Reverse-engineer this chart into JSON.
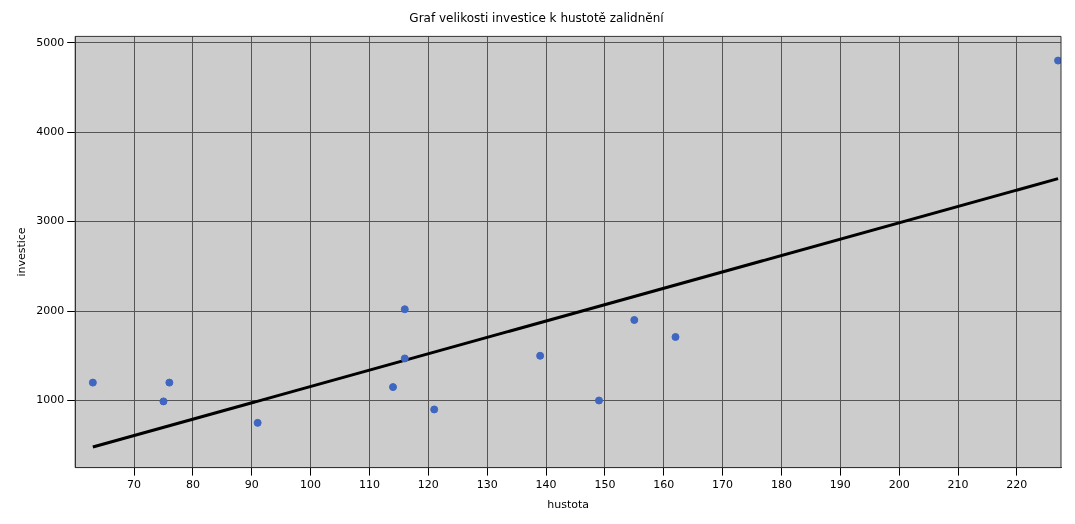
{
  "chart_data": {
    "type": "scatter",
    "title": "Graf velikosti investice k hustotě zalidnění",
    "xlabel": "hustota",
    "ylabel": "investice",
    "xlim": [
      60,
      227.5
    ],
    "ylim": [
      250,
      5070
    ],
    "xticks": [
      70,
      80,
      90,
      100,
      110,
      120,
      130,
      140,
      150,
      160,
      170,
      180,
      190,
      200,
      210,
      220
    ],
    "yticks": [
      1000,
      2000,
      3000,
      4000,
      5000
    ],
    "grid": true,
    "legend": false,
    "marker": "circle",
    "series": [
      {
        "color": "#3f66c0",
        "x": [
          63,
          75,
          76,
          91,
          114,
          116,
          116,
          121,
          139,
          149,
          155,
          162,
          227
        ],
        "values": [
          1200,
          990,
          1200,
          750,
          1150,
          2020,
          1470,
          900,
          1500,
          1000,
          1900,
          1710,
          4800
        ]
      },
      {
        "type": "line",
        "color": "#000000",
        "x": [
          63,
          227
        ],
        "values": [
          480,
          3480
        ],
        "marker": "none"
      }
    ]
  }
}
